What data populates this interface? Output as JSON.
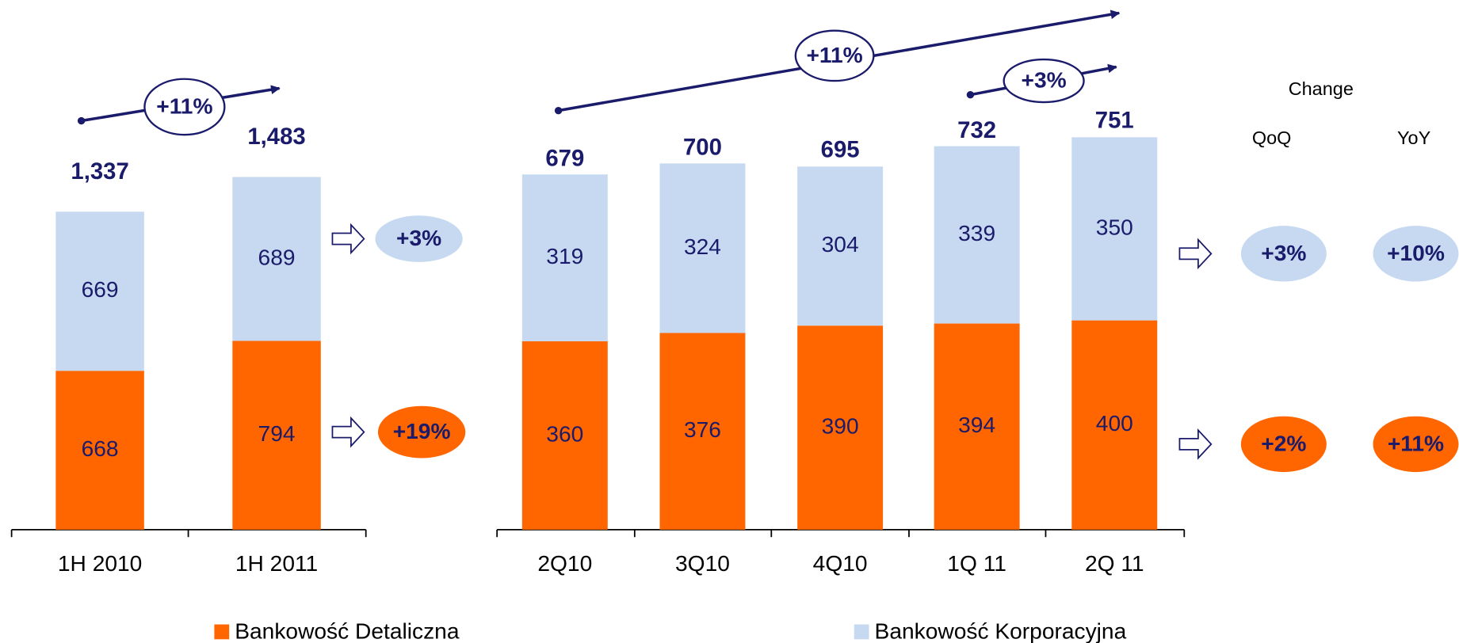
{
  "chart_data": [
    {
      "type": "bar",
      "stacked": true,
      "categories": [
        "1H 2010",
        "1H 2011"
      ],
      "series": [
        {
          "name": "Bankowość Detaliczna",
          "color": "#ff6600",
          "values": [
            668,
            794
          ]
        },
        {
          "name": "Bankowość Korporacyjna",
          "color": "#c6d9f0",
          "values": [
            669,
            689
          ]
        }
      ],
      "totals": [
        1337,
        1483
      ],
      "total_labels": [
        "1,337",
        "1,483"
      ],
      "ylim": [
        0,
        2200
      ],
      "growth_labels": [
        "+11%"
      ],
      "change_labels": [
        "+19%",
        "+3%"
      ]
    },
    {
      "type": "bar",
      "stacked": true,
      "categories": [
        "2Q10",
        "3Q10",
        "4Q10",
        "1Q 11",
        "2Q 11"
      ],
      "series": [
        {
          "name": "Bankowość Detaliczna",
          "color": "#ff6600",
          "values": [
            360,
            376,
            390,
            394,
            400
          ]
        },
        {
          "name": "Bankowość Korporacyjna",
          "color": "#c6d9f0",
          "values": [
            319,
            324,
            304,
            339,
            350
          ]
        }
      ],
      "totals": [
        679,
        700,
        695,
        732,
        751
      ],
      "ylim": [
        0,
        1000
      ],
      "growth_labels": [
        "+11%",
        "+3%"
      ],
      "qoq_labels": [
        "+2%",
        "+3%"
      ],
      "yoy_labels": [
        "+11%",
        "+10%"
      ]
    }
  ],
  "change_panel": {
    "title": "Change",
    "qoq": "QoQ",
    "yoy": "YoY"
  },
  "legend": "bottom"
}
